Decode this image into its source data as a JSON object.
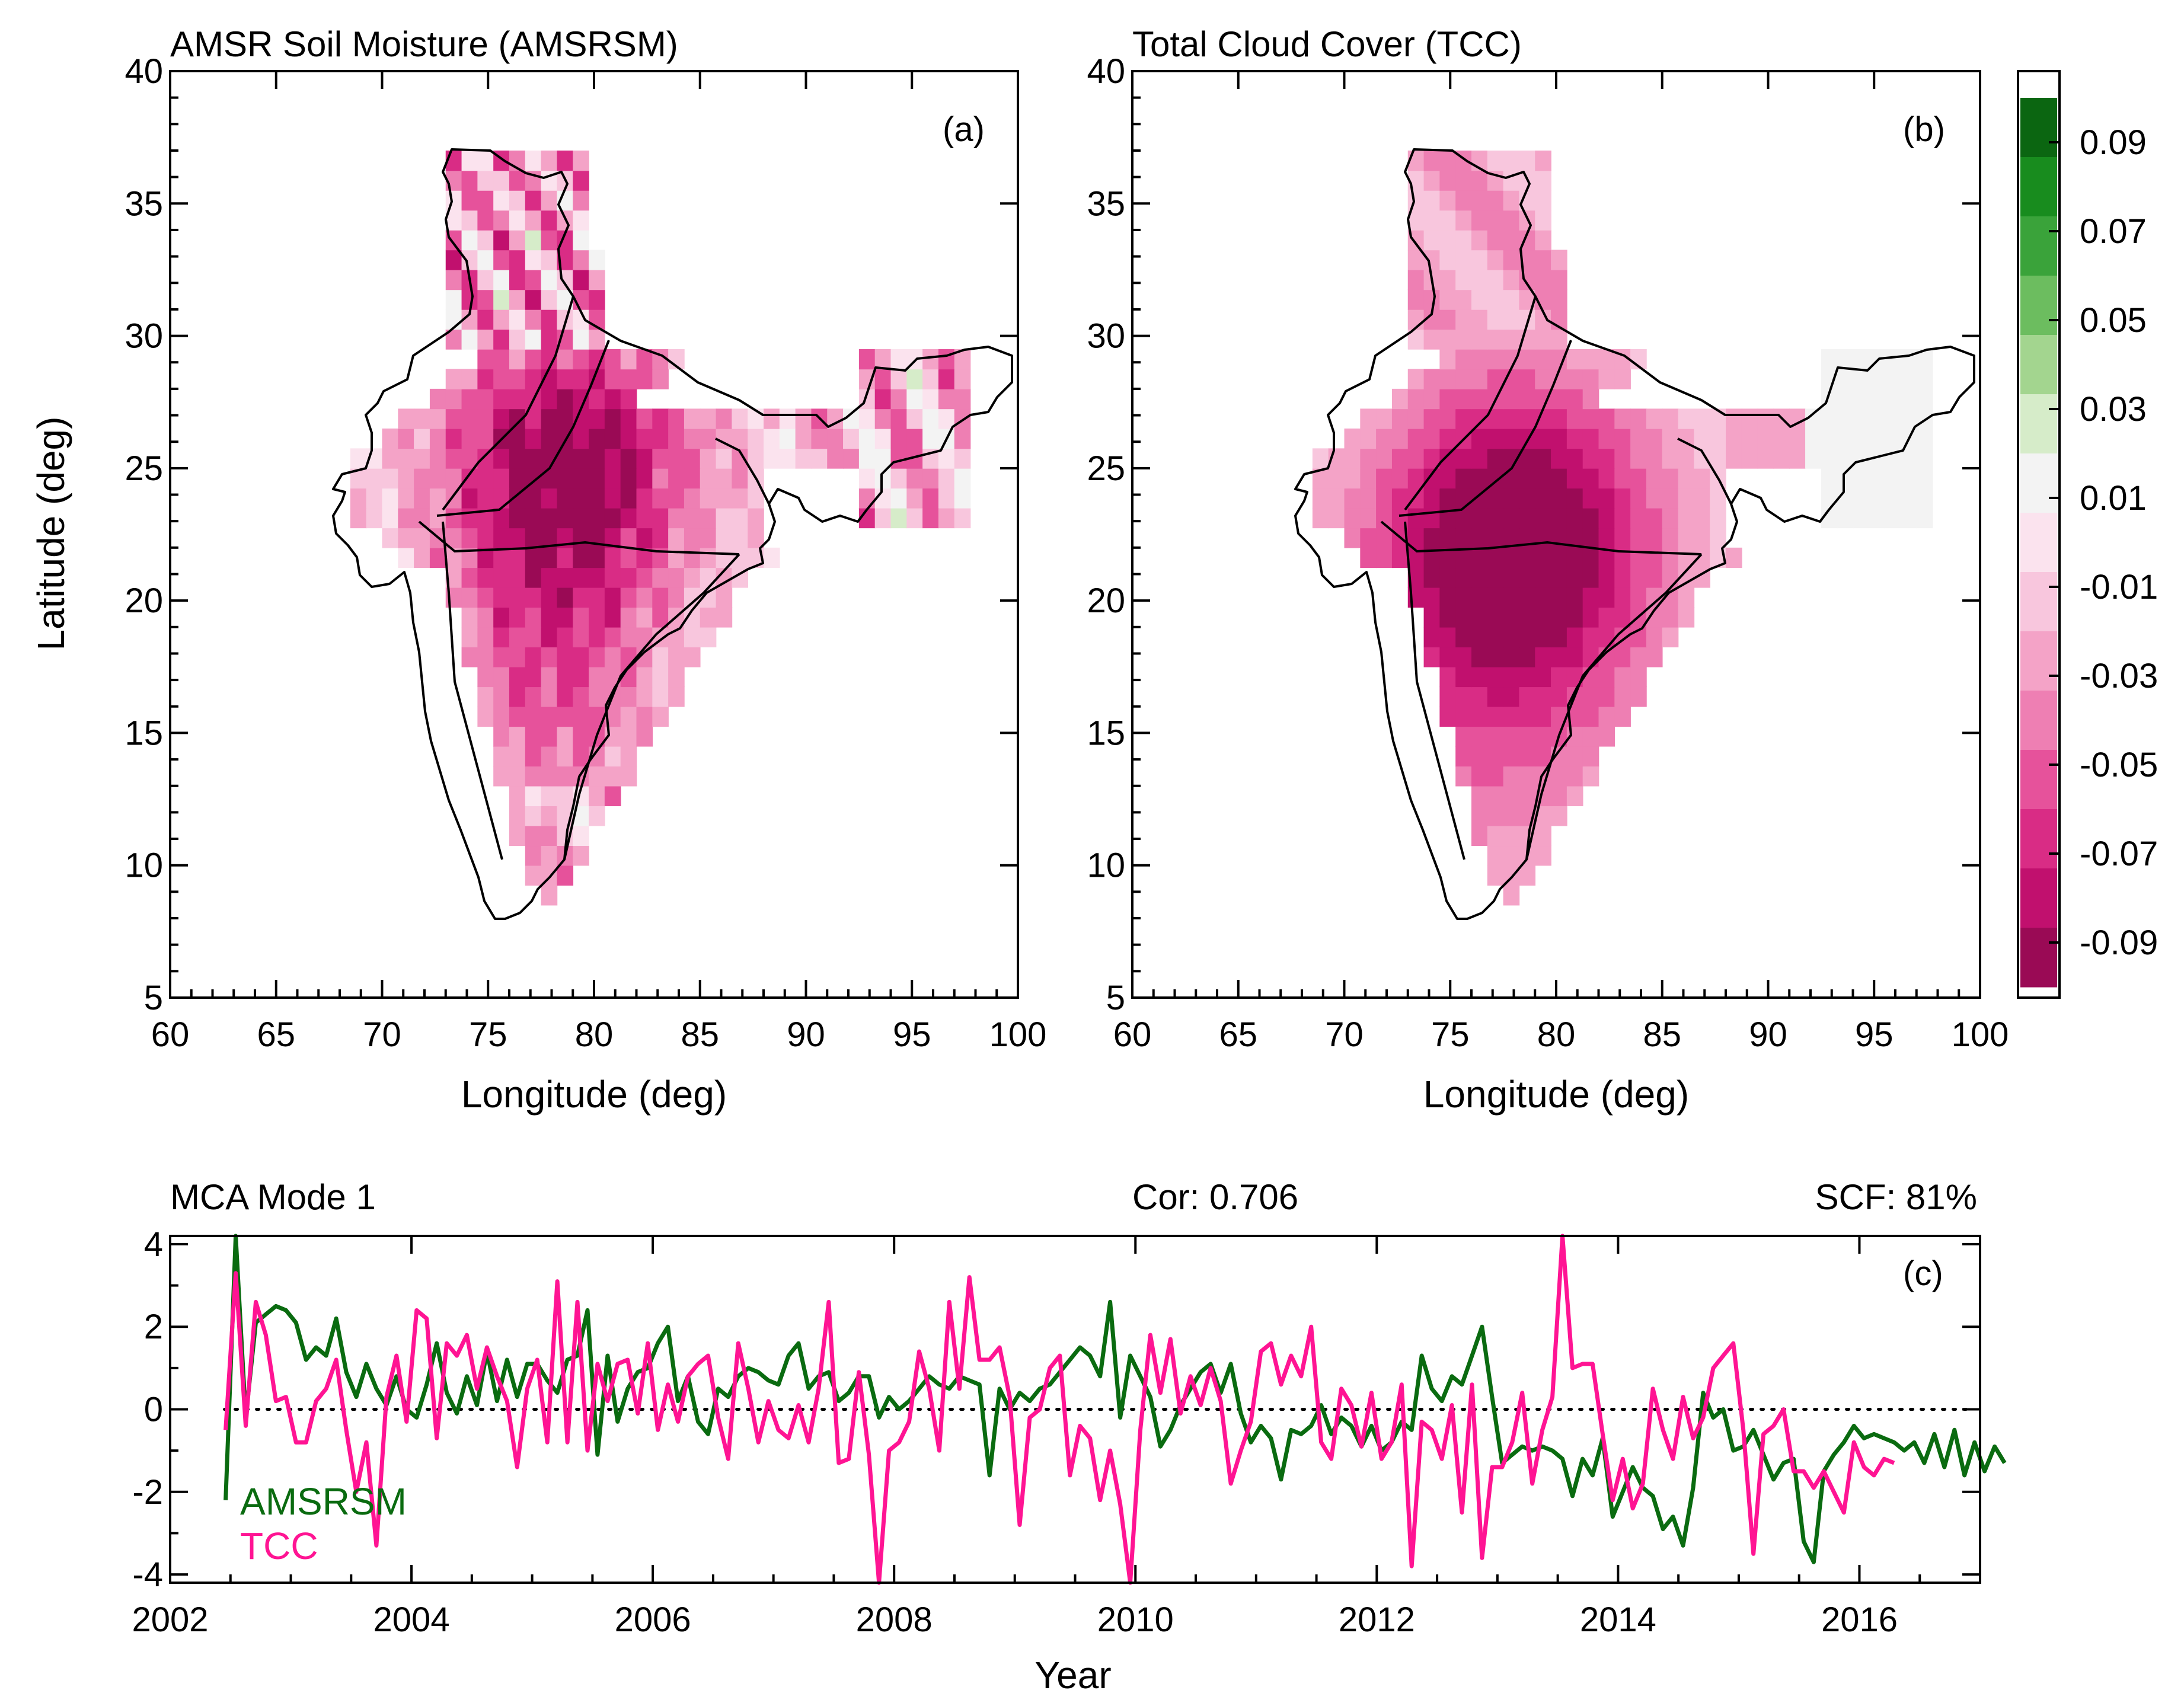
{
  "chart_data": [
    {
      "type": "heatmap",
      "panel": "a",
      "title": "AMSR Soil Moisture (AMSRSM)",
      "xlabel": "Longitude (deg)",
      "ylabel": "Latitude (deg)",
      "xlim": [
        60,
        100
      ],
      "ylim": [
        5,
        40
      ],
      "xticks": [
        "60",
        "65",
        "70",
        "75",
        "80",
        "85",
        "90",
        "95",
        "100"
      ],
      "yticks": [
        "5",
        "10",
        "15",
        "20",
        "25",
        "30",
        "35",
        "40"
      ],
      "annotation": "(a)",
      "description": "Mode-1 spatial pattern over India, mostly negative (pink/magenta), strongest (about -0.10) over north-central India, green patches in the far north"
    },
    {
      "type": "heatmap",
      "panel": "b",
      "title": "Total Cloud Cover (TCC)",
      "xlabel": "Longitude (deg)",
      "xlim": [
        60,
        100
      ],
      "ylim": [
        5,
        40
      ],
      "xticks": [
        "60",
        "65",
        "70",
        "75",
        "80",
        "85",
        "90",
        "95",
        "100"
      ],
      "yticks": [
        "5",
        "10",
        "15",
        "20",
        "25",
        "30",
        "35",
        "40"
      ],
      "annotation": "(b)",
      "description": "Mode-1 spatial pattern over India, smooth negative field strongest (about -0.10) over central India, near-zero green in the northeast"
    },
    {
      "type": "colorbar",
      "range": [
        -0.1,
        0.1
      ],
      "tick_labels": [
        "0.09",
        "0.07",
        "0.05",
        "0.03",
        "0.01",
        "-0.01",
        "-0.03",
        "-0.05",
        "-0.07",
        "-0.09"
      ],
      "colors": [
        "#0b6611",
        "#188c1e",
        "#3aa33a",
        "#6cbd5f",
        "#a3d58f",
        "#d6ecc9",
        "#f3f3f3",
        "#fbe3ee",
        "#f8c6dd",
        "#f4a3c7",
        "#ee7fb3",
        "#e6529b",
        "#d92c85",
        "#c1106e",
        "#9a0a55"
      ]
    },
    {
      "type": "line",
      "panel": "c",
      "title": "MCA Mode 1",
      "correlation_label": "Cor: 0.706",
      "scf_label": "SCF:  81%",
      "annotation": "(c)",
      "xlabel": "Year",
      "xlim": [
        2002,
        2017
      ],
      "ylim": [
        -4.2,
        4.2
      ],
      "xticks": [
        "2002",
        "2004",
        "2006",
        "2008",
        "2010",
        "2012",
        "2014",
        "2016"
      ],
      "yticks": [
        "4",
        "2",
        "0",
        "-2",
        "-4"
      ],
      "reference_line": 0,
      "series": [
        {
          "name": "AMSRSM",
          "color": "#0a6b10",
          "x_start": 2002.46,
          "x_step": 0.0833,
          "values": [
            -2.2,
            4.3,
            -0.2,
            2.1,
            2.3,
            2.5,
            2.4,
            2.1,
            1.2,
            1.5,
            1.3,
            2.2,
            0.9,
            0.3,
            1.1,
            0.5,
            0.1,
            0.8,
            0.0,
            -0.2,
            0.6,
            1.6,
            0.4,
            -0.1,
            0.8,
            0.1,
            1.4,
            0.2,
            1.2,
            0.3,
            1.1,
            1.1,
            0.7,
            0.4,
            1.2,
            1.3,
            2.4,
            -1.1,
            1.3,
            -0.3,
            0.5,
            0.9,
            1.0,
            1.6,
            2.0,
            0.2,
            0.8,
            -0.3,
            -0.6,
            0.5,
            0.3,
            0.8,
            1.0,
            0.9,
            0.7,
            0.6,
            1.3,
            1.6,
            0.5,
            0.8,
            0.9,
            0.2,
            0.4,
            0.8,
            0.8,
            -0.2,
            0.3,
            0.0,
            0.2,
            0.5,
            0.8,
            0.6,
            0.5,
            0.8,
            0.7,
            0.6,
            -1.6,
            0.5,
            0.0,
            0.4,
            0.2,
            0.5,
            0.6,
            0.9,
            1.2,
            1.5,
            1.3,
            0.8,
            2.6,
            -0.2,
            1.3,
            0.8,
            0.3,
            -0.9,
            -0.5,
            0.1,
            0.5,
            0.9,
            1.1,
            0.4,
            1.1,
            -0.1,
            -0.8,
            -0.4,
            -0.7,
            -1.7,
            -0.5,
            -0.6,
            -0.4,
            0.1,
            -0.6,
            -0.2,
            -0.4,
            -0.9,
            -0.4,
            -1.0,
            -0.8,
            -0.3,
            -0.5,
            1.3,
            0.5,
            0.2,
            0.8,
            0.6,
            1.3,
            2.0,
            0.3,
            -1.3,
            -1.1,
            -0.9,
            -1.0,
            -0.9,
            -1.0,
            -1.2,
            -2.1,
            -1.2,
            -1.6,
            -0.7,
            -2.6,
            -2.0,
            -1.4,
            -1.9,
            -2.1,
            -2.9,
            -2.6,
            -3.3,
            -1.9,
            0.4,
            -0.2,
            0.0,
            -1.0,
            -0.9,
            -0.5,
            -1.1,
            -1.7,
            -1.3,
            -1.2,
            -3.2,
            -3.7,
            -1.5,
            -1.1,
            -0.8,
            -0.4,
            -0.7,
            -0.6,
            -0.7,
            -0.8,
            -1.0,
            -0.8,
            -1.3,
            -0.6,
            -1.4,
            -0.5,
            -1.6,
            -0.8,
            -1.5,
            -0.9,
            -1.3
          ]
        },
        {
          "name": "TCC",
          "color": "#ff1493",
          "x_start": 2002.46,
          "x_step": 0.0833,
          "values": [
            -0.5,
            3.3,
            -0.4,
            2.6,
            1.8,
            0.2,
            0.3,
            -0.8,
            -0.8,
            0.2,
            0.5,
            1.2,
            -0.5,
            -2.0,
            -0.8,
            -3.3,
            0.3,
            1.3,
            -0.3,
            2.4,
            2.2,
            -0.7,
            1.6,
            1.3,
            1.8,
            0.5,
            1.5,
            0.8,
            0.2,
            -1.4,
            0.5,
            1.2,
            -0.8,
            3.1,
            -0.8,
            2.6,
            -1.0,
            1.1,
            0.2,
            1.1,
            1.2,
            -0.1,
            1.6,
            -0.5,
            0.6,
            -0.3,
            0.8,
            1.1,
            1.3,
            -0.2,
            -1.2,
            1.6,
            0.5,
            -0.8,
            0.2,
            -0.5,
            -0.7,
            0.1,
            -0.8,
            0.5,
            2.6,
            -1.3,
            -1.2,
            0.9,
            -1.1,
            -4.3,
            -1.0,
            -0.8,
            -0.3,
            1.4,
            0.5,
            -1.0,
            2.6,
            0.5,
            3.2,
            1.2,
            1.2,
            1.5,
            0.3,
            -2.8,
            -0.2,
            0.0,
            1.0,
            1.3,
            -1.6,
            -0.4,
            -0.7,
            -2.2,
            -1.0,
            -2.3,
            -4.2,
            -0.5,
            1.8,
            0.4,
            1.7,
            -0.1,
            0.8,
            0.1,
            1.0,
            0.2,
            -1.8,
            -1.0,
            -0.3,
            1.4,
            1.6,
            0.6,
            1.3,
            0.8,
            2.0,
            -0.8,
            -1.2,
            0.5,
            0.1,
            -0.9,
            0.4,
            -1.2,
            -0.8,
            0.6,
            -3.8,
            -0.3,
            -0.5,
            -1.2,
            0.1,
            -2.5,
            0.6,
            -3.6,
            -1.4,
            -1.4,
            -0.8,
            0.4,
            -1.8,
            -0.5,
            0.3,
            4.2,
            1.0,
            1.1,
            1.1,
            -0.6,
            -2.2,
            -1.2,
            -2.4,
            -1.8,
            0.5,
            -0.5,
            -1.2,
            0.3,
            -0.7,
            -0.2,
            1.0,
            1.3,
            1.6,
            -0.5,
            -3.5,
            -0.6,
            -0.4,
            0.0,
            -1.5,
            -1.5,
            -1.9,
            -1.5,
            -2.0,
            -2.5,
            -0.8,
            -1.4,
            -1.6,
            -1.2,
            -1.3
          ]
        }
      ]
    }
  ]
}
